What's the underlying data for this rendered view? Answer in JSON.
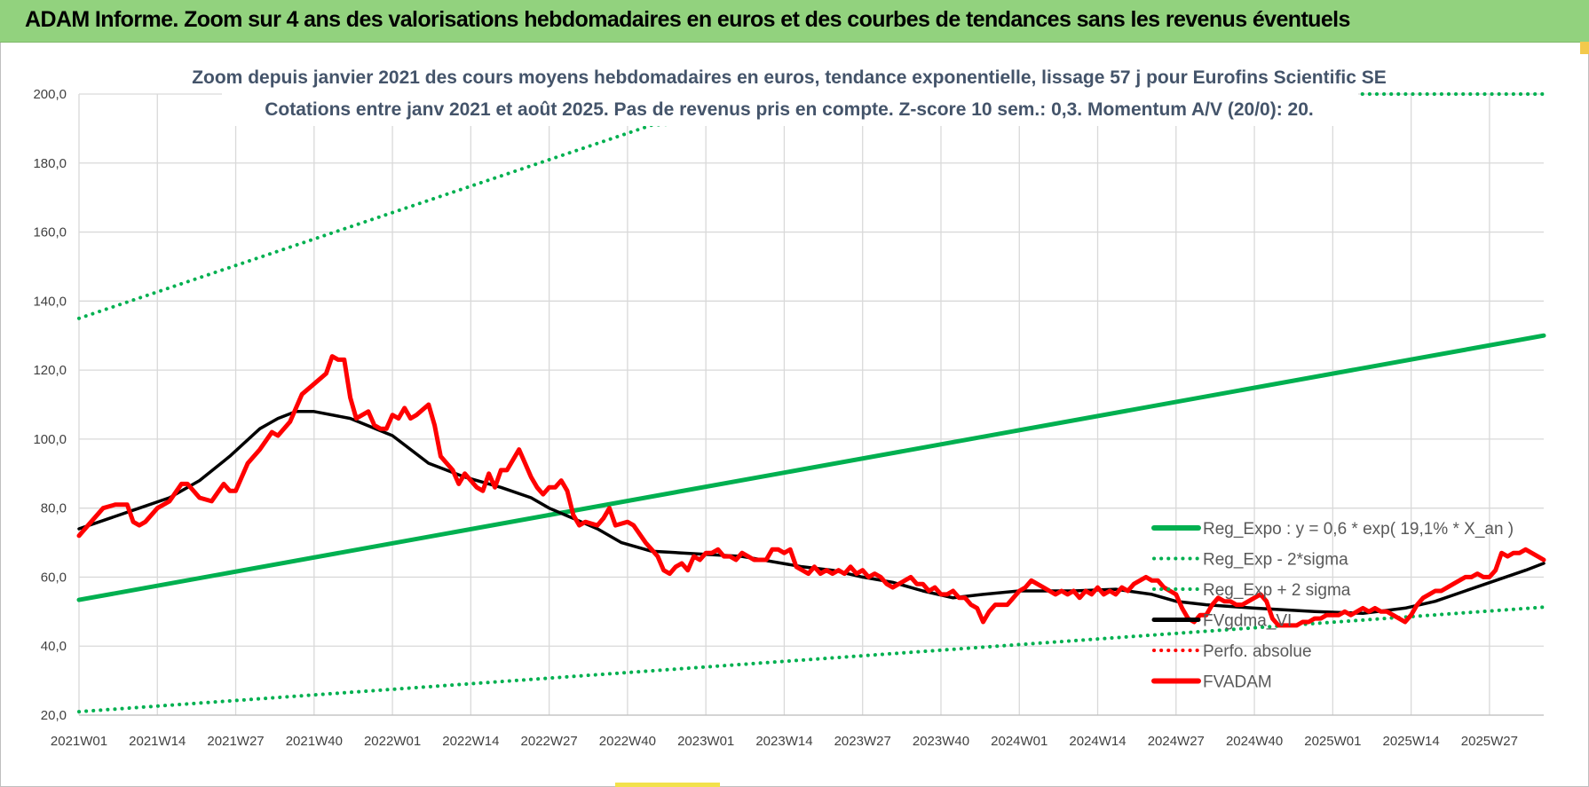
{
  "header": {
    "title": "ADAM Informe. Zoom sur 4 ans des valorisations hebdomadaires en euros et des courbes de tendances sans les revenus éventuels"
  },
  "chart_data": {
    "type": "line",
    "subtitle_line1": "Zoom depuis janvier 2021 des cours moyens hebdomadaires en euros, tendance exponentielle, lissage 57 j pour Eurofins Scientific SE",
    "subtitle_line2": "Cotations entre janv 2021 et août 2025.  Pas de revenus pris en compte. Z-score 10 sem.: 0,3. Momentum A/V (20/0): 20.",
    "ylim": [
      20,
      200
    ],
    "y_ticks": [
      "20,0",
      "40,0",
      "60,0",
      "80,0",
      "100,0",
      "120,0",
      "140,0",
      "160,0",
      "180,0",
      "200,0"
    ],
    "x_tick_labels": [
      "2021W01",
      "2021W14",
      "2021W27",
      "2021W40",
      "2022W01",
      "2022W14",
      "2022W27",
      "2022W40",
      "2023W01",
      "2023W14",
      "2023W27",
      "2023W40",
      "2024W01",
      "2024W14",
      "2024W27",
      "2024W40",
      "2025W01",
      "2025W14",
      "2025W27"
    ],
    "x_tick_weeks": [
      0,
      13,
      26,
      39,
      52,
      65,
      78,
      91,
      104,
      117,
      130,
      143,
      156,
      169,
      182,
      195,
      208,
      221,
      234
    ],
    "n_weeks": 243,
    "grid": true,
    "legend_position": "bottom-right",
    "series": [
      {
        "name": "Reg_Expo : y = 0,6 * exp( 19,1% *  X_an )",
        "style": "solid",
        "color": "#00b050",
        "points": [
          [
            0,
            53.4
          ],
          [
            243,
            130.0
          ]
        ]
      },
      {
        "name": "Reg_Exp - 2*sigma",
        "style": "dotted",
        "color": "#00b050",
        "points": [
          [
            0,
            21.0
          ],
          [
            243,
            51.3
          ]
        ]
      },
      {
        "name": "Reg_Exp + 2 sigma",
        "style": "dotted",
        "color": "#00b050",
        "points": [
          [
            0,
            135.0
          ],
          [
            95,
            191.0
          ],
          [
            209,
            200
          ],
          [
            243,
            200
          ]
        ]
      },
      {
        "name": "FVgdma_VI",
        "style": "solid",
        "color": "#000000",
        "points": [
          [
            0,
            74
          ],
          [
            5,
            77
          ],
          [
            10,
            80
          ],
          [
            15,
            83
          ],
          [
            20,
            88
          ],
          [
            25,
            95
          ],
          [
            30,
            103
          ],
          [
            33,
            106
          ],
          [
            36,
            108
          ],
          [
            39,
            108
          ],
          [
            45,
            106
          ],
          [
            52,
            101
          ],
          [
            58,
            93
          ],
          [
            64,
            89
          ],
          [
            70,
            86
          ],
          [
            75,
            83
          ],
          [
            78,
            80
          ],
          [
            82,
            77
          ],
          [
            86,
            74
          ],
          [
            90,
            70
          ],
          [
            95,
            67.5
          ],
          [
            100,
            67
          ],
          [
            110,
            66
          ],
          [
            120,
            63
          ],
          [
            125,
            62
          ],
          [
            130,
            60
          ],
          [
            135,
            58.5
          ],
          [
            140,
            56
          ],
          [
            145,
            54
          ],
          [
            150,
            55
          ],
          [
            156,
            56
          ],
          [
            165,
            56
          ],
          [
            172,
            56.5
          ],
          [
            178,
            55
          ],
          [
            182,
            53
          ],
          [
            187,
            52
          ],
          [
            195,
            51
          ],
          [
            205,
            50
          ],
          [
            213,
            49.5
          ],
          [
            220,
            51
          ],
          [
            225,
            53
          ],
          [
            230,
            56
          ],
          [
            235,
            59
          ],
          [
            240,
            62
          ],
          [
            243,
            64
          ]
        ]
      },
      {
        "name": "Perfo. absolue",
        "style": "dotted",
        "color": "#ff0000",
        "points": []
      },
      {
        "name": "FVADAM",
        "style": "solid",
        "color": "#ff0000",
        "points": [
          [
            0,
            72
          ],
          [
            2,
            76
          ],
          [
            4,
            80
          ],
          [
            6,
            81
          ],
          [
            8,
            81
          ],
          [
            9,
            76
          ],
          [
            10,
            75
          ],
          [
            11,
            76
          ],
          [
            13,
            80
          ],
          [
            15,
            82
          ],
          [
            17,
            87
          ],
          [
            18,
            87
          ],
          [
            20,
            83
          ],
          [
            22,
            82
          ],
          [
            24,
            87
          ],
          [
            25,
            85
          ],
          [
            26,
            85
          ],
          [
            28,
            93
          ],
          [
            30,
            97
          ],
          [
            32,
            102
          ],
          [
            33,
            101
          ],
          [
            35,
            105
          ],
          [
            37,
            113
          ],
          [
            39,
            116
          ],
          [
            41,
            119
          ],
          [
            42,
            124
          ],
          [
            43,
            123
          ],
          [
            44,
            123
          ],
          [
            45,
            112
          ],
          [
            46,
            106
          ],
          [
            47,
            107
          ],
          [
            48,
            108
          ],
          [
            49,
            104
          ],
          [
            50,
            103
          ],
          [
            51,
            103
          ],
          [
            52,
            107
          ],
          [
            53,
            106
          ],
          [
            54,
            109
          ],
          [
            55,
            106
          ],
          [
            56,
            107
          ],
          [
            58,
            110
          ],
          [
            59,
            104
          ],
          [
            60,
            95
          ],
          [
            62,
            91
          ],
          [
            63,
            87
          ],
          [
            64,
            90
          ],
          [
            65,
            88
          ],
          [
            66,
            86
          ],
          [
            67,
            85
          ],
          [
            68,
            90
          ],
          [
            69,
            86
          ],
          [
            70,
            91
          ],
          [
            71,
            91
          ],
          [
            72,
            94
          ],
          [
            73,
            97
          ],
          [
            74,
            93
          ],
          [
            75,
            89
          ],
          [
            76,
            86
          ],
          [
            77,
            84
          ],
          [
            78,
            86
          ],
          [
            79,
            86
          ],
          [
            80,
            88
          ],
          [
            81,
            85
          ],
          [
            82,
            78
          ],
          [
            83,
            75
          ],
          [
            84,
            76
          ],
          [
            86,
            75
          ],
          [
            87,
            77
          ],
          [
            88,
            80
          ],
          [
            89,
            75
          ],
          [
            91,
            76
          ],
          [
            92,
            75
          ],
          [
            94,
            70
          ],
          [
            95,
            68
          ],
          [
            96,
            66
          ],
          [
            97,
            62
          ],
          [
            98,
            61
          ],
          [
            99,
            63
          ],
          [
            100,
            64
          ],
          [
            101,
            62
          ],
          [
            102,
            66
          ],
          [
            103,
            65
          ],
          [
            104,
            67
          ],
          [
            105,
            67
          ],
          [
            106,
            68
          ],
          [
            107,
            66
          ],
          [
            108,
            66
          ],
          [
            109,
            65
          ],
          [
            110,
            67
          ],
          [
            111,
            66
          ],
          [
            112,
            65
          ],
          [
            114,
            65
          ],
          [
            115,
            68
          ],
          [
            116,
            68
          ],
          [
            117,
            67
          ],
          [
            118,
            68
          ],
          [
            119,
            63
          ],
          [
            120,
            62
          ],
          [
            121,
            61
          ],
          [
            122,
            63
          ],
          [
            123,
            61
          ],
          [
            124,
            62
          ],
          [
            125,
            61
          ],
          [
            126,
            62
          ],
          [
            127,
            61
          ],
          [
            128,
            63
          ],
          [
            129,
            61
          ],
          [
            130,
            62
          ],
          [
            131,
            60
          ],
          [
            132,
            61
          ],
          [
            133,
            60
          ],
          [
            134,
            58
          ],
          [
            135,
            57
          ],
          [
            136,
            58
          ],
          [
            137,
            59
          ],
          [
            138,
            60
          ],
          [
            139,
            58
          ],
          [
            140,
            58
          ],
          [
            141,
            56
          ],
          [
            142,
            57
          ],
          [
            143,
            55
          ],
          [
            144,
            55
          ],
          [
            145,
            56
          ],
          [
            146,
            54
          ],
          [
            147,
            54
          ],
          [
            148,
            52
          ],
          [
            149,
            51
          ],
          [
            150,
            47
          ],
          [
            151,
            50
          ],
          [
            152,
            52
          ],
          [
            153,
            52
          ],
          [
            154,
            52
          ],
          [
            155,
            54
          ],
          [
            156,
            56
          ],
          [
            157,
            57
          ],
          [
            158,
            59
          ],
          [
            159,
            58
          ],
          [
            160,
            57
          ],
          [
            161,
            56
          ],
          [
            162,
            55
          ],
          [
            163,
            56
          ],
          [
            164,
            55
          ],
          [
            165,
            56
          ],
          [
            166,
            54
          ],
          [
            167,
            56
          ],
          [
            168,
            55
          ],
          [
            169,
            57
          ],
          [
            170,
            55
          ],
          [
            171,
            56
          ],
          [
            172,
            55
          ],
          [
            173,
            57
          ],
          [
            174,
            56
          ],
          [
            175,
            58
          ],
          [
            176,
            59
          ],
          [
            177,
            60
          ],
          [
            178,
            59
          ],
          [
            179,
            59
          ],
          [
            180,
            57
          ],
          [
            181,
            56
          ],
          [
            182,
            55
          ],
          [
            183,
            51
          ],
          [
            184,
            48
          ],
          [
            185,
            47
          ],
          [
            186,
            49
          ],
          [
            187,
            49
          ],
          [
            188,
            52
          ],
          [
            189,
            54
          ],
          [
            190,
            53
          ],
          [
            191,
            53
          ],
          [
            192,
            52
          ],
          [
            193,
            52
          ],
          [
            194,
            53
          ],
          [
            195,
            54
          ],
          [
            196,
            55
          ],
          [
            197,
            53
          ],
          [
            198,
            48
          ],
          [
            199,
            46
          ],
          [
            200,
            46
          ],
          [
            201,
            46
          ],
          [
            202,
            46
          ],
          [
            203,
            47
          ],
          [
            204,
            47
          ],
          [
            205,
            48
          ],
          [
            206,
            48
          ],
          [
            207,
            49
          ],
          [
            208,
            49
          ],
          [
            209,
            49
          ],
          [
            210,
            50
          ],
          [
            211,
            49
          ],
          [
            212,
            50
          ],
          [
            213,
            51
          ],
          [
            214,
            50
          ],
          [
            215,
            51
          ],
          [
            216,
            50
          ],
          [
            217,
            50
          ],
          [
            218,
            49
          ],
          [
            219,
            48
          ],
          [
            220,
            47
          ],
          [
            221,
            49
          ],
          [
            222,
            52
          ],
          [
            223,
            54
          ],
          [
            224,
            55
          ],
          [
            225,
            56
          ],
          [
            226,
            56
          ],
          [
            227,
            57
          ],
          [
            228,
            58
          ],
          [
            229,
            59
          ],
          [
            230,
            60
          ],
          [
            231,
            60
          ],
          [
            232,
            61
          ],
          [
            233,
            60
          ],
          [
            234,
            60
          ],
          [
            235,
            62
          ],
          [
            236,
            67
          ],
          [
            237,
            66
          ],
          [
            238,
            67
          ],
          [
            239,
            67
          ],
          [
            240,
            68
          ],
          [
            241,
            67
          ],
          [
            242,
            66
          ],
          [
            243,
            65
          ]
        ]
      }
    ]
  }
}
